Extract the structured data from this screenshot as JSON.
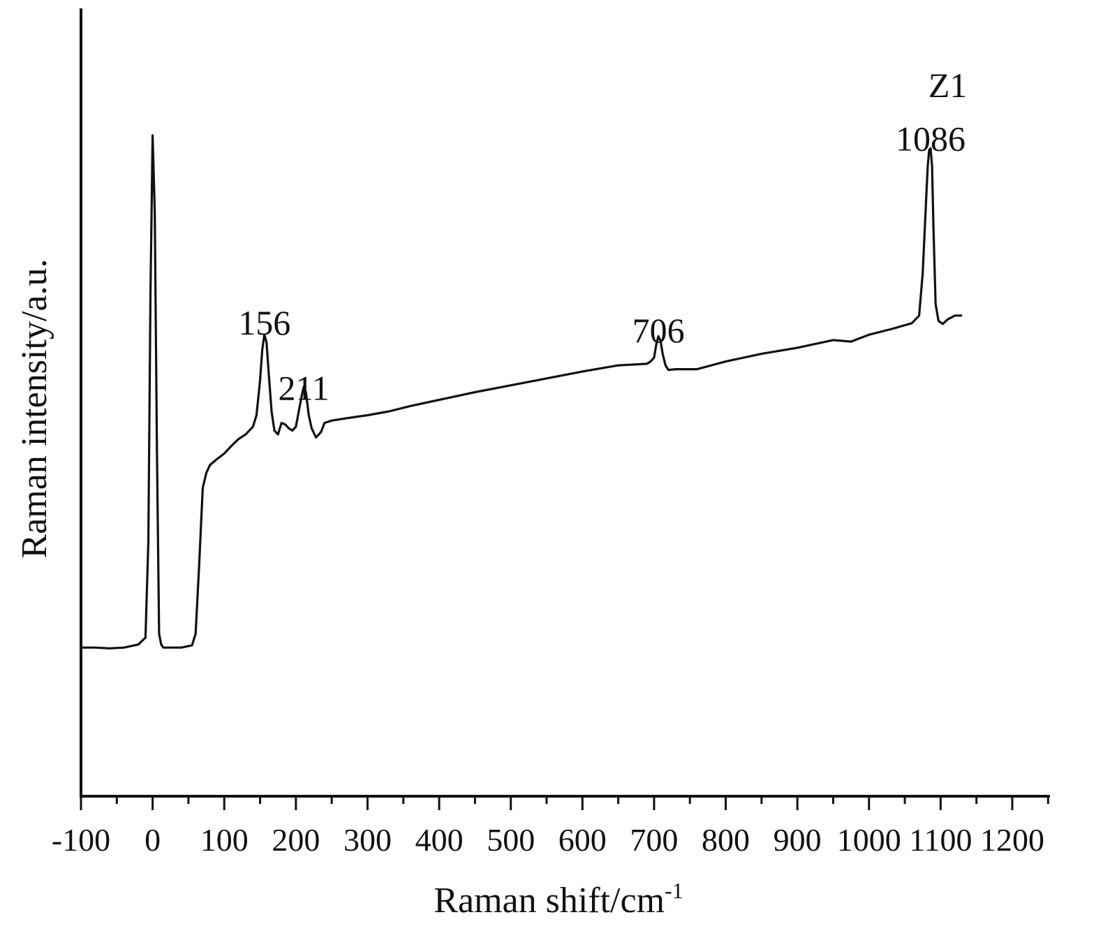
{
  "chart_data": {
    "type": "line",
    "xlabel": "Raman shift/cm",
    "xlabel_superscript": "-1",
    "ylabel": "Raman intensity/a.u.",
    "xlim": [
      -100,
      1250
    ],
    "ylim": [
      0,
      100
    ],
    "x_ticks": [
      -100,
      0,
      100,
      200,
      300,
      400,
      500,
      600,
      700,
      800,
      900,
      1000,
      1100,
      1200
    ],
    "y_ticks_shown": false,
    "grid": false,
    "legend": "none",
    "line_color": "#111111",
    "annotations": [
      {
        "text": "Z1",
        "x": 1110,
        "y": 91,
        "kind": "sample"
      },
      {
        "text": "156",
        "x": 156,
        "y": 60,
        "kind": "peak"
      },
      {
        "text": "211",
        "x": 211,
        "y": 51.5,
        "kind": "peak"
      },
      {
        "text": "706",
        "x": 706,
        "y": 59,
        "kind": "peak"
      },
      {
        "text": "1086",
        "x": 1086,
        "y": 84,
        "kind": "peak"
      }
    ],
    "series": [
      {
        "x": [
          -100,
          -80,
          -60,
          -40,
          -20,
          -10,
          -6,
          -3,
          0,
          3,
          6,
          9,
          12,
          15,
          20,
          30,
          40,
          55,
          60,
          65,
          70,
          75,
          80,
          90,
          100,
          110,
          120,
          130,
          140,
          145,
          150,
          153,
          156,
          159,
          162,
          166,
          170,
          175,
          180,
          185,
          190,
          195,
          200,
          205,
          208,
          211,
          214,
          218,
          222,
          228,
          235,
          240,
          250,
          270,
          300,
          330,
          360,
          400,
          450,
          500,
          550,
          600,
          650,
          690,
          695,
          700,
          703,
          706,
          709,
          712,
          716,
          720,
          730,
          760,
          800,
          850,
          900,
          950,
          975,
          1000,
          1030,
          1060,
          1070,
          1075,
          1079,
          1082,
          1084,
          1086,
          1088,
          1090,
          1093,
          1097,
          1103,
          1110,
          1120,
          1130
        ],
        "y": [
          19.2,
          19.2,
          19.1,
          19.2,
          19.6,
          20.5,
          33,
          65,
          86,
          76,
          45,
          21,
          19.6,
          19.2,
          19.2,
          19.2,
          19.2,
          19.5,
          21,
          30,
          40,
          42,
          43,
          43.8,
          44.5,
          45.5,
          46.4,
          47,
          48,
          49.5,
          54,
          58,
          60,
          59,
          55,
          50,
          47.5,
          47,
          48.5,
          48.3,
          47.8,
          47.5,
          48,
          50.5,
          52,
          53.2,
          52.5,
          49.5,
          47.8,
          46.6,
          47.3,
          48.5,
          48.8,
          49.1,
          49.5,
          50,
          50.7,
          51.5,
          52.5,
          53.4,
          54.3,
          55.2,
          56,
          56.2,
          56.5,
          57,
          58.7,
          59.8,
          59.2,
          57.5,
          56,
          55.4,
          55.5,
          55.5,
          56.5,
          57.5,
          58.3,
          59.3,
          59.1,
          60,
          60.7,
          61.5,
          62.5,
          68,
          76,
          82,
          84.1,
          84.3,
          82,
          74,
          64,
          61.8,
          61.4,
          62,
          62.5,
          62.5
        ]
      }
    ]
  }
}
